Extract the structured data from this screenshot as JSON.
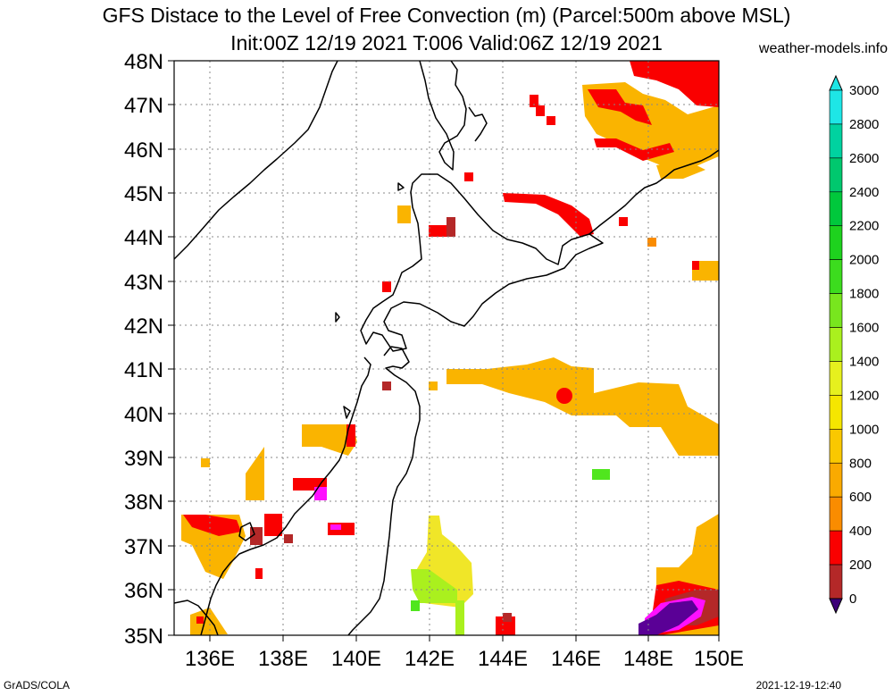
{
  "title": {
    "line1": "GFS Distace to the Level of Free Convection (m) (Parcel:500m above MSL)",
    "line2": "Init:00Z 12/19 2021 T:006 Valid:06Z 12/19 2021"
  },
  "site": "weather-models.info",
  "footer": {
    "left": "GrADS/COLA",
    "right": "2021-12-19-12:40"
  },
  "map": {
    "lat_labels": [
      "48N",
      "47N",
      "46N",
      "45N",
      "44N",
      "43N",
      "42N",
      "41N",
      "40N",
      "39N",
      "38N",
      "37N",
      "36N",
      "35N"
    ],
    "lon_labels": [
      "136E",
      "138E",
      "140E",
      "142E",
      "144E",
      "146E",
      "148E",
      "150E"
    ]
  },
  "colorbar": {
    "levels": [
      "3000",
      "2800",
      "2600",
      "2400",
      "2200",
      "2000",
      "1800",
      "1600",
      "1400",
      "1200",
      "1000",
      "800",
      "600",
      "400",
      "200",
      "0"
    ],
    "colors": [
      "#1ee6e6",
      "#00d2a0",
      "#00c86e",
      "#00c83c",
      "#1ed21e",
      "#3cdc1e",
      "#78e61e",
      "#aaf01e",
      "#e6f01e",
      "#f5e600",
      "#fac800",
      "#faaa00",
      "#fa8c00",
      "#fa0000",
      "#b42828",
      "#ff10ff",
      "#6e00b4",
      "#3c0078"
    ],
    "top_color": "#1ee6e6",
    "bottom_color": "#3c0078"
  },
  "colors": {
    "orange": "#fab400",
    "deep_orange": "#fa8c00",
    "red": "#fa0000",
    "brown": "#b42828",
    "magenta": "#ff10ff",
    "purple": "#5a0096",
    "green": "#50e61e",
    "lime": "#aaf01e",
    "yellow": "#f0e628"
  }
}
